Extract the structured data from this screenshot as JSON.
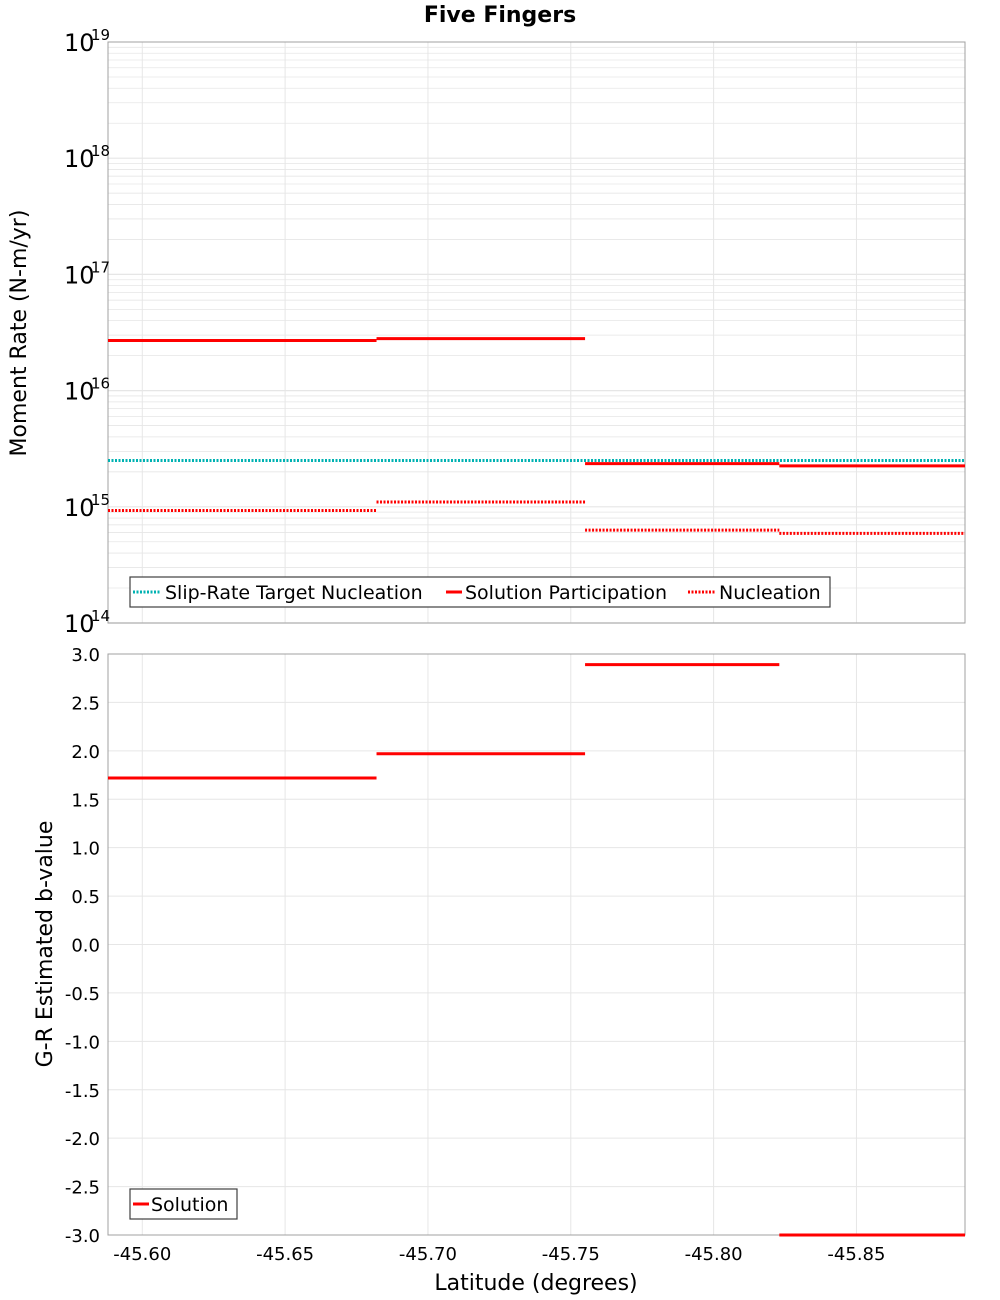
{
  "title": "Five Fingers",
  "xlabel": "Latitude (degrees)",
  "colors": {
    "target": "#00B2B2",
    "solution": "#FF0000",
    "grid": "#E6E6E6",
    "frame": "#A0A0A0"
  },
  "chart_data": [
    {
      "type": "line",
      "panel": "top",
      "ylabel": "Moment Rate (N-m/yr)",
      "yscale": "log",
      "ylim": [
        100000000000000.0,
        1e+19
      ],
      "xlim": [
        -45.588,
        -45.888
      ],
      "x_reversed": true,
      "grid": true,
      "legend_position": "bottom-left",
      "yticks": [
        {
          "base": "10",
          "exp": "14",
          "value": 100000000000000.0
        },
        {
          "base": "10",
          "exp": "15",
          "value": 1000000000000000.0
        },
        {
          "base": "10",
          "exp": "16",
          "value": 1e+16
        },
        {
          "base": "10",
          "exp": "17",
          "value": 1e+17
        },
        {
          "base": "10",
          "exp": "18",
          "value": 1e+18
        },
        {
          "base": "10",
          "exp": "19",
          "value": 1e+19
        }
      ],
      "series": [
        {
          "name": "Slip-Rate Target Nucleation",
          "color": "#00B2B2",
          "style": "dotted",
          "segments": [
            [
              -45.588,
              -45.888,
              2500000000000000.0
            ]
          ]
        },
        {
          "name": "Solution Participation",
          "color": "#FF0000",
          "style": "solid",
          "segments": [
            [
              -45.588,
              -45.682,
              2.7e+16
            ],
            [
              -45.682,
              -45.755,
              2.8e+16
            ],
            [
              -45.755,
              -45.823,
              2350000000000000.0
            ],
            [
              -45.823,
              -45.888,
              2250000000000000.0
            ]
          ]
        },
        {
          "name": "Nucleation",
          "color": "#FF0000",
          "style": "dotted",
          "segments": [
            [
              -45.588,
              -45.682,
              930000000000000.0
            ],
            [
              -45.682,
              -45.755,
              1100000000000000.0
            ],
            [
              -45.755,
              -45.823,
              630000000000000.0
            ],
            [
              -45.823,
              -45.888,
              590000000000000.0
            ]
          ]
        }
      ]
    },
    {
      "type": "line",
      "panel": "bottom",
      "ylabel": "G-R Estimated b-value",
      "ylim": [
        -3.0,
        3.0
      ],
      "xlim": [
        -45.588,
        -45.888
      ],
      "x_reversed": true,
      "grid": true,
      "legend_position": "bottom-left",
      "yticks": [
        "3.0",
        "2.5",
        "2.0",
        "1.5",
        "1.0",
        "0.5",
        "0.0",
        "-0.5",
        "-1.0",
        "-1.5",
        "-2.0",
        "-2.5",
        "-3.0"
      ],
      "xticks": [
        "-45.60",
        "-45.65",
        "-45.70",
        "-45.75",
        "-45.80",
        "-45.85"
      ],
      "series": [
        {
          "name": "Solution",
          "color": "#FF0000",
          "style": "solid",
          "segments": [
            [
              -45.588,
              -45.682,
              1.72
            ],
            [
              -45.682,
              -45.755,
              1.97
            ],
            [
              -45.755,
              -45.823,
              2.89
            ],
            [
              -45.823,
              -45.888,
              -3.0
            ]
          ]
        }
      ]
    }
  ]
}
